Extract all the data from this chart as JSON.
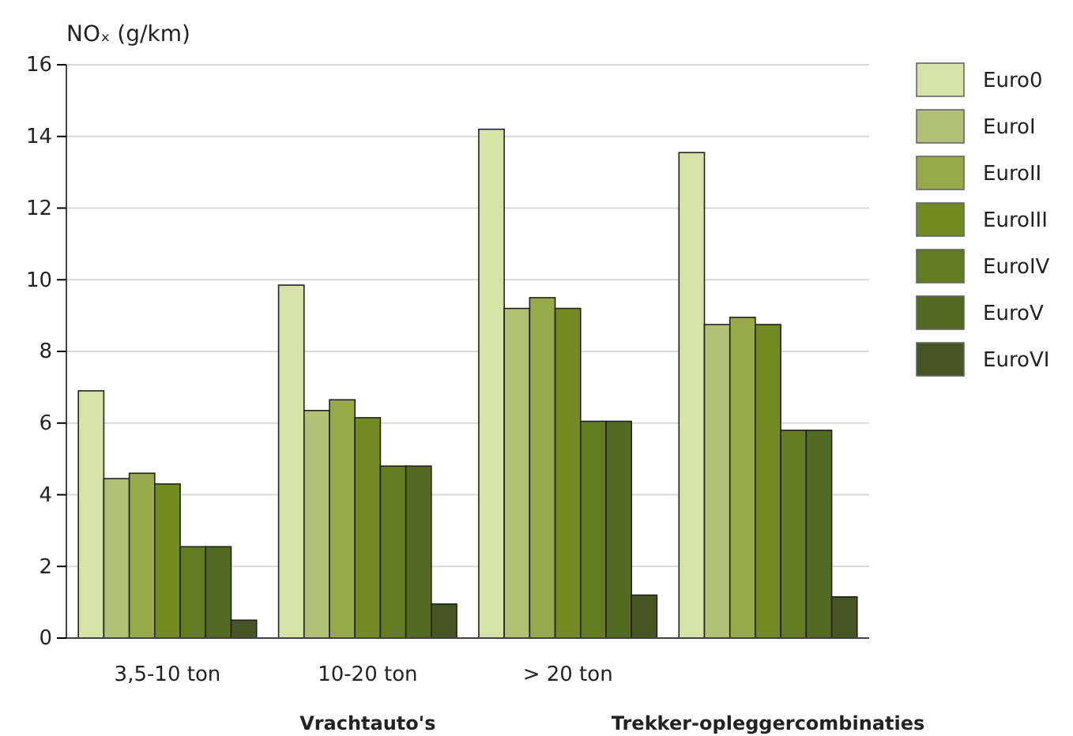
{
  "chart_data": {
    "type": "bar",
    "ylabel": "NOₓ (g/km)",
    "categories": [
      "3,5-10 ton",
      "10-20 ton",
      "> 20 ton",
      null
    ],
    "series": [
      {
        "name": "Euro0",
        "color": "#d7e2a8",
        "values": [
          6.9,
          9.85,
          14.2,
          13.55
        ]
      },
      {
        "name": "EuroI",
        "color": "#b3c177",
        "values": [
          4.45,
          6.35,
          9.2,
          8.75
        ]
      },
      {
        "name": "EuroII",
        "color": "#97a949",
        "values": [
          4.6,
          6.65,
          9.5,
          8.95
        ]
      },
      {
        "name": "EuroIII",
        "color": "#718b22",
        "values": [
          4.3,
          6.15,
          9.2,
          8.75
        ]
      },
      {
        "name": "EuroIV",
        "color": "#637c22",
        "values": [
          2.55,
          4.8,
          6.05,
          5.8
        ]
      },
      {
        "name": "EuroV",
        "color": "#536a22",
        "values": [
          2.55,
          4.8,
          6.05,
          5.8
        ]
      },
      {
        "name": "EuroVI",
        "color": "#455523",
        "values": [
          0.5,
          0.95,
          1.2,
          1.15
        ]
      }
    ],
    "annotations": [
      "Vrachtauto's",
      "Trekker-opleggercombinaties"
    ],
    "ylim": [
      0,
      16
    ],
    "yticks": [
      0,
      2,
      4,
      6,
      8,
      10,
      12,
      14,
      16
    ],
    "grid": "y",
    "legend": "right"
  }
}
